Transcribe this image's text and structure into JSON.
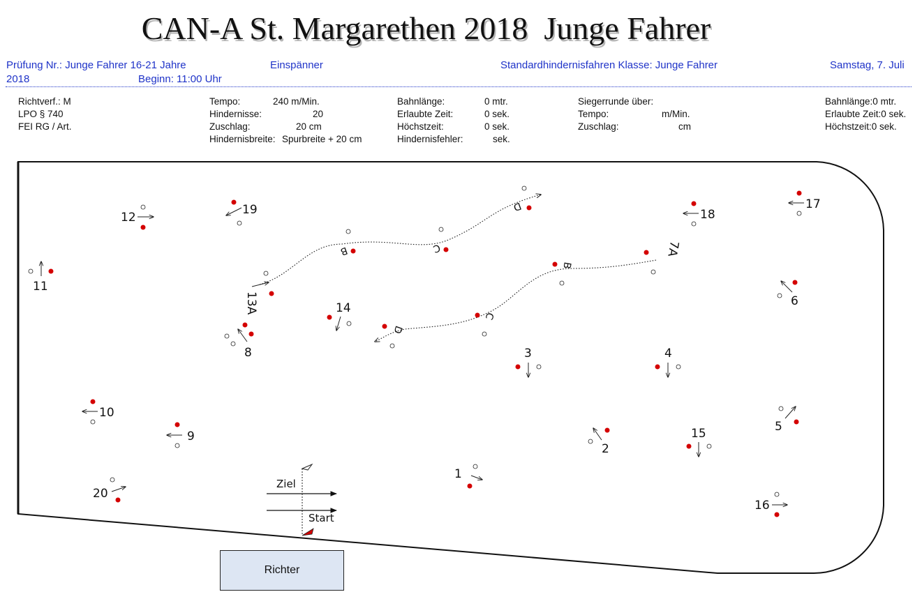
{
  "header": {
    "title": "CAN-A St. Margarethen 2018  Junge Fahrer",
    "pruefung": "Prüfung Nr.: Junge Fahrer 16-21 Jahre",
    "pruefung_year": "2018",
    "einspaenner": "Einspänner",
    "beginn": "Beginn: 11:00 Uhr",
    "klasse": "Standardhindernisfahren Klasse: Junge Fahrer",
    "datum": "Samstag, 7. Juli"
  },
  "info": {
    "richtverf": "Richtverf.: M",
    "lpo": "LPO § 740",
    "fei": "FEI RG / Art.",
    "tempo_label": "Tempo:",
    "tempo_value": "240 m/Min.",
    "hindernisse_label": "Hindernisse:",
    "hindernisse_value": "20",
    "zuschlag_label": "Zuschlag:",
    "zuschlag_value": "20 cm",
    "hindernisbreite_label": "Hindernisbreite:",
    "hindernisbreite_value": "Spurbreite + 20 cm",
    "bahnlaenge_label": "Bahnlänge:",
    "bahnlaenge_value": "0 mtr.",
    "erlaubte_label": "Erlaubte Zeit:",
    "erlaubte_value": "0 sek.",
    "hoechst_label": "Höchstzeit:",
    "hoechst_value": "0 sek.",
    "fehler_label": "Hindernisfehler:",
    "fehler_value": "sek.",
    "sieger_label": "Siegerrunde über:",
    "s_tempo_label": "Tempo:",
    "s_tempo_value": "m/Min.",
    "s_zuschlag_label": "Zuschlag:",
    "s_zuschlag_value": "cm",
    "r_bahnlaenge": "Bahnlänge:0 mtr.",
    "r_erlaubte": "Erlaubte Zeit:0 sek.",
    "r_hoechst": "Höchstzeit:0 sek."
  },
  "course": {
    "colors": {
      "red_cone": "#d40000",
      "white_cone": "#ffffff",
      "line": "#111111"
    },
    "obstacles": [
      {
        "label": "1"
      },
      {
        "label": "2"
      },
      {
        "label": "3"
      },
      {
        "label": "4"
      },
      {
        "label": "5"
      },
      {
        "label": "6"
      },
      {
        "label": "8"
      },
      {
        "label": "9"
      },
      {
        "label": "10"
      },
      {
        "label": "11"
      },
      {
        "label": "12"
      },
      {
        "label": "14"
      },
      {
        "label": "15"
      },
      {
        "label": "16"
      },
      {
        "label": "17"
      },
      {
        "label": "18"
      },
      {
        "label": "19"
      },
      {
        "label": "20"
      }
    ],
    "multi_top": {
      "start": "13A",
      "b": "B",
      "c": "C",
      "d": "D"
    },
    "multi_bottom": {
      "start": "7A",
      "b": "B",
      "c": "C",
      "d": "D"
    },
    "ziel": "Ziel",
    "start": "Start",
    "richter": "Richter"
  }
}
